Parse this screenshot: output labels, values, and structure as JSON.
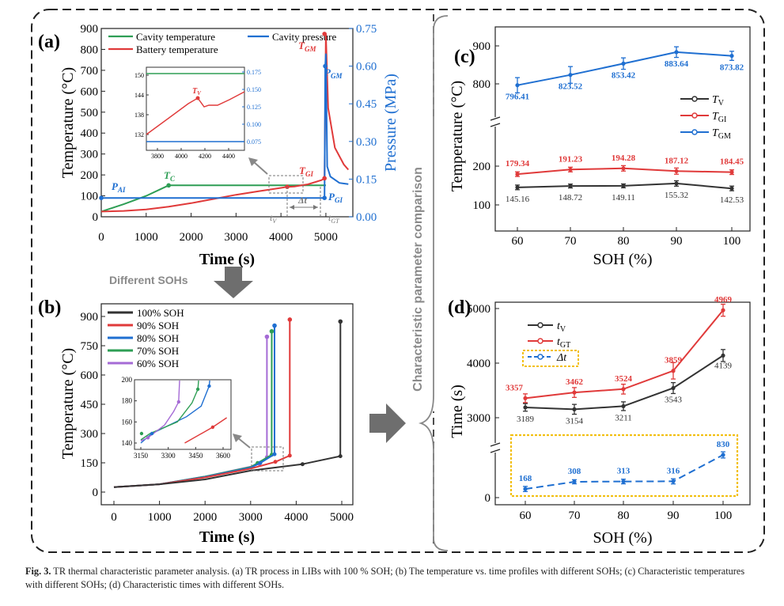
{
  "colors": {
    "green": "#2e9e55",
    "red": "#e03a3a",
    "blue": "#1f6fd1",
    "black": "#333333",
    "purple": "#a56bd6",
    "gold": "#f2c014",
    "gray": "#808080"
  },
  "middle": {
    "arrow_label": "Different SOHs",
    "vertical_label": "Characteristic parameter comparison"
  },
  "panel_a": {
    "label": "(a)",
    "xlabel": "Time (s)",
    "ylabel": "Temperature (°C)",
    "y2label": "Pressure (MPa)",
    "xticks": [
      "0",
      "1000",
      "2000",
      "3000",
      "4000",
      "5000"
    ],
    "yticks": [
      "0",
      "100",
      "200",
      "300",
      "400",
      "500",
      "600",
      "700",
      "800",
      "900"
    ],
    "y2ticks": [
      "0.00",
      "0.15",
      "0.30",
      "0.45",
      "0.60",
      "0.75"
    ],
    "legend": [
      "Cavity temperature",
      "Battery temperature",
      "Cavity pressure"
    ],
    "annotations": {
      "PAI": "P",
      "PAI_sub": "AI",
      "TC": "T",
      "TC_sub": "C",
      "TGI": "T",
      "TGI_sub": "GI",
      "TGM": "T",
      "TGM_sub": "GM",
      "PGM": "P",
      "PGM_sub": "GM",
      "PGI": "P",
      "PGI_sub": "GI",
      "tV": "t",
      "tV_sub": "V",
      "dt": "Δt",
      "tGT": "t",
      "tGT_sub": "GT"
    },
    "inset": {
      "xticks": [
        "3800",
        "4000",
        "4200",
        "4400"
      ],
      "yticks": [
        "132",
        "138",
        "144",
        "150"
      ],
      "y2ticks": [
        "0.075",
        "0.100",
        "0.125",
        "0.150",
        "0.175"
      ],
      "TV": "T",
      "TV_sub": "V"
    }
  },
  "panel_b": {
    "label": "(b)",
    "xlabel": "Time (s)",
    "ylabel": "Temperature (°C)",
    "xticks": [
      "0",
      "1000",
      "2000",
      "3000",
      "4000",
      "5000"
    ],
    "yticks": [
      "0",
      "150",
      "300",
      "450",
      "600",
      "750",
      "900"
    ],
    "legend": [
      "100% SOH",
      "90% SOH",
      "80% SOH",
      "70% SOH",
      "60% SOH"
    ],
    "inset": {
      "xticks": [
        "3150",
        "3300",
        "3450",
        "3600"
      ],
      "yticks": [
        "140",
        "160",
        "180",
        "200"
      ]
    }
  },
  "panel_c": {
    "label": "(c)",
    "xlabel": "SOH (%)",
    "ylabel": "Temperature (°C)",
    "xticks": [
      "60",
      "70",
      "80",
      "90",
      "100"
    ],
    "yticks_top": [
      "800",
      "900"
    ],
    "yticks_bottom": [
      "100",
      "200"
    ],
    "legend": [
      {
        "sym": "T",
        "sub": "V"
      },
      {
        "sym": "T",
        "sub": "GI"
      },
      {
        "sym": "T",
        "sub": "GM"
      }
    ]
  },
  "panel_d": {
    "label": "(d)",
    "xlabel": "SOH (%)",
    "ylabel": "Time (s)",
    "xticks": [
      "60",
      "70",
      "80",
      "90",
      "100"
    ],
    "yticks_top": [
      "3000",
      "4000",
      "5000"
    ],
    "yticks_bottom": [
      "0"
    ],
    "legend": [
      {
        "sym": "t",
        "sub": "V"
      },
      {
        "sym": "t",
        "sub": "GT"
      },
      {
        "sym": "Δt",
        "sub": ""
      }
    ]
  },
  "chart_data": [
    {
      "type": "line",
      "panel": "(a)",
      "xlabel": "Time (s)",
      "ylabel": "Temperature (°C)",
      "y2label": "Pressure (MPa)",
      "xlim": [
        0,
        5600
      ],
      "ylim": [
        0,
        900
      ],
      "y2lim": [
        0,
        0.75
      ],
      "series": [
        {
          "name": "Cavity temperature",
          "axis": "left",
          "x": [
            0,
            500,
            1000,
            1500,
            2000,
            3000,
            4000,
            4900,
            5000
          ],
          "y": [
            25,
            60,
            100,
            150,
            150,
            150,
            150,
            150,
            150
          ]
        },
        {
          "name": "Battery temperature",
          "axis": "left",
          "x": [
            0,
            500,
            1000,
            1500,
            2000,
            2500,
            3000,
            3500,
            4000,
            4139,
            4300,
            4600,
            4900,
            4969,
            5000,
            5050,
            5200,
            5400,
            5500
          ],
          "y": [
            25,
            28,
            35,
            48,
            65,
            85,
            105,
            122,
            138,
            143,
            145,
            155,
            175,
            184,
            874,
            520,
            330,
            250,
            225
          ]
        },
        {
          "name": "Cavity pressure",
          "axis": "right",
          "x": [
            0,
            1000,
            2000,
            3000,
            4000,
            4900,
            4969,
            4985,
            5000,
            5030,
            5100,
            5300,
            5500
          ],
          "y": [
            0.075,
            0.075,
            0.075,
            0.075,
            0.075,
            0.075,
            0.075,
            0.6,
            0.65,
            0.2,
            0.16,
            0.135,
            0.13
          ]
        }
      ]
    },
    {
      "type": "line",
      "panel": "(b)",
      "xlabel": "Time (s)",
      "ylabel": "Temperature (°C)",
      "xlim": [
        0,
        5200
      ],
      "ylim": [
        0,
        900
      ],
      "series": [
        {
          "name": "100% SOH",
          "x": [
            0,
            1000,
            2000,
            3000,
            4139,
            4969,
            4970
          ],
          "y": [
            25,
            40,
            65,
            110,
            143,
            184,
            874
          ]
        },
        {
          "name": "90% SOH",
          "x": [
            0,
            1000,
            2000,
            3000,
            3543,
            3859,
            3860
          ],
          "y": [
            25,
            40,
            75,
            120,
            155,
            187,
            884
          ]
        },
        {
          "name": "80% SOH",
          "x": [
            0,
            1000,
            2000,
            3000,
            3211,
            3524,
            3525
          ],
          "y": [
            25,
            40,
            78,
            125,
            149,
            194,
            853
          ]
        },
        {
          "name": "70% SOH",
          "x": [
            0,
            1000,
            2000,
            3000,
            3154,
            3462,
            3463
          ],
          "y": [
            25,
            40,
            80,
            128,
            149,
            191,
            824
          ]
        },
        {
          "name": "60% SOH",
          "x": [
            0,
            1000,
            2000,
            3000,
            3189,
            3357,
            3358
          ],
          "y": [
            25,
            40,
            80,
            130,
            145,
            179,
            796
          ]
        }
      ]
    },
    {
      "type": "line",
      "panel": "(c)",
      "xlabel": "SOH (%)",
      "ylabel": "Temperature (°C)",
      "categories": [
        60,
        70,
        80,
        90,
        100
      ],
      "series": [
        {
          "name": "TV",
          "values": [
            145.16,
            148.72,
            149.11,
            155.32,
            142.53
          ],
          "err": [
            6,
            5,
            5,
            7,
            6
          ]
        },
        {
          "name": "TGI",
          "values": [
            179.34,
            191.23,
            194.28,
            187.12,
            184.45
          ],
          "err": [
            6,
            6,
            7,
            8,
            6
          ]
        },
        {
          "name": "TGM",
          "values": [
            796.41,
            823.52,
            853.42,
            883.64,
            873.82
          ],
          "err": [
            20,
            22,
            15,
            14,
            12
          ]
        }
      ]
    },
    {
      "type": "line",
      "panel": "(d)",
      "xlabel": "SOH (%)",
      "ylabel": "Time (s)",
      "categories": [
        60,
        70,
        80,
        90,
        100
      ],
      "series": [
        {
          "name": "tV",
          "values": [
            3189,
            3154,
            3211,
            3543,
            4139
          ],
          "err": [
            70,
            90,
            80,
            100,
            110
          ]
        },
        {
          "name": "tGT",
          "values": [
            3357,
            3462,
            3524,
            3859,
            4969
          ],
          "err": [
            80,
            90,
            90,
            150,
            110
          ]
        },
        {
          "name": "Δt",
          "values": [
            168,
            308,
            313,
            316,
            830
          ],
          "err": [
            50,
            40,
            45,
            50,
            60
          ]
        }
      ]
    }
  ],
  "caption": {
    "label": "Fig. 3.",
    "text": " TR thermal characteristic parameter analysis. (a) TR process in LIBs with 100 % SOH; (b) The temperature vs. time profiles with different SOHs; (c) Characteristic temperatures with different SOHs; (d) Characteristic times with different SOHs."
  }
}
